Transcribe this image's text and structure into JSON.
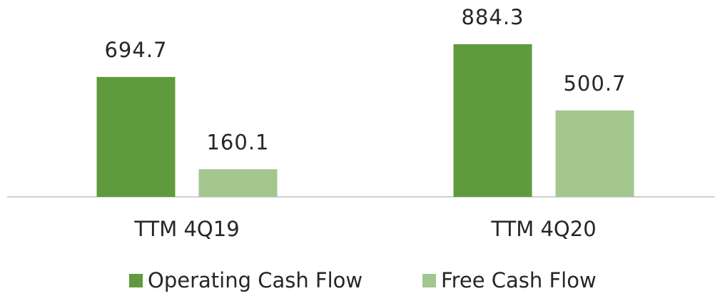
{
  "chart_data": {
    "type": "bar",
    "categories": [
      "TTM 4Q19",
      "TTM 4Q20"
    ],
    "series": [
      {
        "name": "Operating Cash Flow",
        "color": "#5f9a3f",
        "values": [
          694.7,
          884.3
        ]
      },
      {
        "name": "Free Cash Flow",
        "color": "#a3c68e",
        "values": [
          160.1,
          500.7
        ]
      }
    ],
    "legend": "bottom"
  }
}
